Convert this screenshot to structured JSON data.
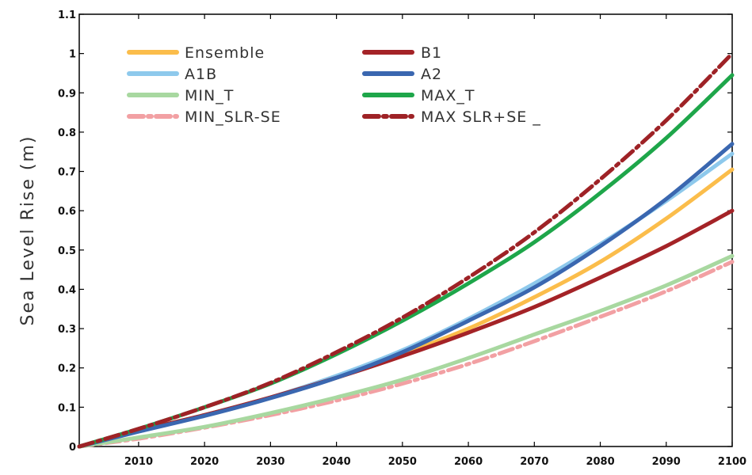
{
  "chart_data": {
    "type": "line",
    "ylabel": "Sea Level Rise (m)",
    "xlabel": "",
    "xlim": [
      2001,
      2100
    ],
    "ylim": [
      0,
      1.1
    ],
    "grid": false,
    "legend_position": "top-left",
    "x_ticks": [
      2010,
      2020,
      2030,
      2040,
      2050,
      2060,
      2070,
      2080,
      2090,
      2100
    ],
    "x_tick_labels": [
      "2010",
      "2020",
      "2030",
      "2040",
      "2050",
      "2060",
      "2070",
      "2080",
      "2090",
      "2100"
    ],
    "y_ticks": [
      0,
      0.1,
      0.2,
      0.3,
      0.4,
      0.5,
      0.6,
      0.7,
      0.8,
      0.9,
      1.0,
      1.1
    ],
    "y_tick_labels": [
      "0",
      "0.1",
      "0.2",
      "0.3",
      "0.4",
      "0.5",
      "0.6",
      "0.7",
      "0.8",
      "0.9",
      "1",
      "1.1"
    ],
    "x": [
      2001,
      2010,
      2020,
      2030,
      2040,
      2050,
      2060,
      2070,
      2080,
      2090,
      2100
    ],
    "series": [
      {
        "name": "Ensemble",
        "color": "#fbbd4b",
        "dash": "solid",
        "values": [
          0,
          0.04,
          0.08,
          0.125,
          0.175,
          0.235,
          0.3,
          0.38,
          0.47,
          0.58,
          0.705
        ]
      },
      {
        "name": "A1B",
        "color": "#8ec9ec",
        "dash": "solid",
        "values": [
          0,
          0.038,
          0.08,
          0.125,
          0.18,
          0.245,
          0.325,
          0.415,
          0.515,
          0.625,
          0.745
        ]
      },
      {
        "name": "MIN_T",
        "color": "#a8d8a0",
        "dash": "solid",
        "values": [
          0,
          0.023,
          0.05,
          0.085,
          0.125,
          0.17,
          0.225,
          0.285,
          0.345,
          0.41,
          0.485
        ]
      },
      {
        "name": "MIN_SLR-SE",
        "color": "#f2a0a3",
        "dash": "dashdot",
        "values": [
          0,
          0.02,
          0.048,
          0.08,
          0.117,
          0.16,
          0.21,
          0.268,
          0.33,
          0.395,
          0.47
        ]
      },
      {
        "name": "B1",
        "color": "#a42327",
        "dash": "solid",
        "values": [
          0,
          0.04,
          0.08,
          0.125,
          0.175,
          0.23,
          0.29,
          0.355,
          0.43,
          0.51,
          0.6
        ]
      },
      {
        "name": "A2",
        "color": "#3a67b0",
        "dash": "solid",
        "values": [
          0,
          0.038,
          0.078,
          0.123,
          0.175,
          0.24,
          0.32,
          0.405,
          0.51,
          0.63,
          0.77
        ]
      },
      {
        "name": "MAX_T",
        "color": "#1ea64a",
        "dash": "solid",
        "values": [
          0,
          0.045,
          0.1,
          0.16,
          0.235,
          0.32,
          0.415,
          0.52,
          0.645,
          0.785,
          0.945
        ]
      },
      {
        "name": "MAX SLR+SE _",
        "color": "#9e2226",
        "dash": "dashdot",
        "values": [
          0,
          0.045,
          0.1,
          0.162,
          0.24,
          0.328,
          0.43,
          0.545,
          0.68,
          0.83,
          1.0
        ]
      }
    ]
  }
}
